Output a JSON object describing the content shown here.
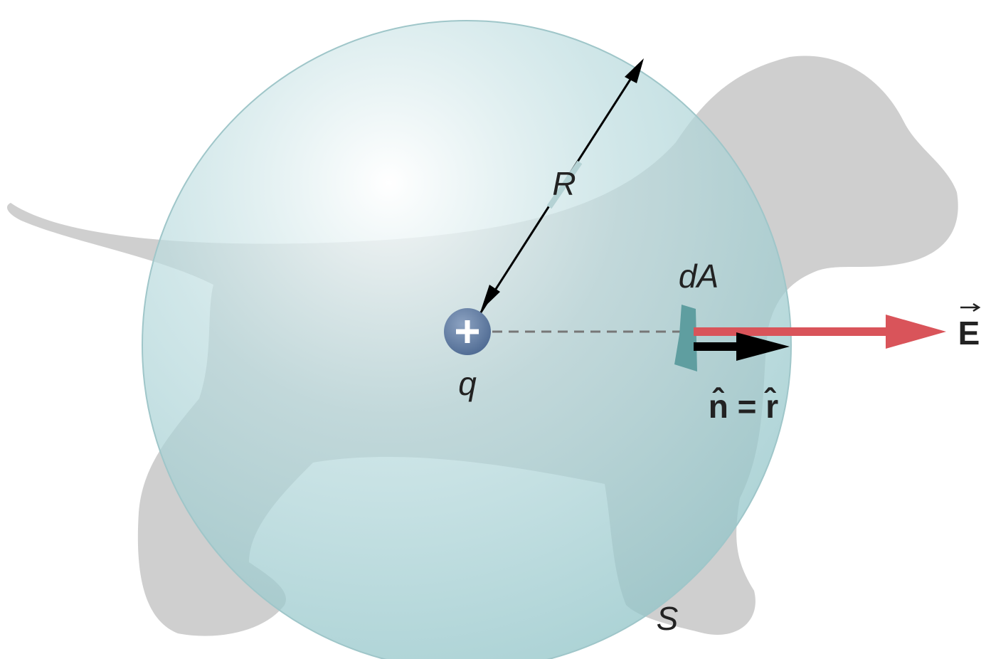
{
  "labels": {
    "radius": "R",
    "area": "dA",
    "charge": "q",
    "surface": "S",
    "field": "E",
    "normal": "n̂ = r̂"
  }
}
